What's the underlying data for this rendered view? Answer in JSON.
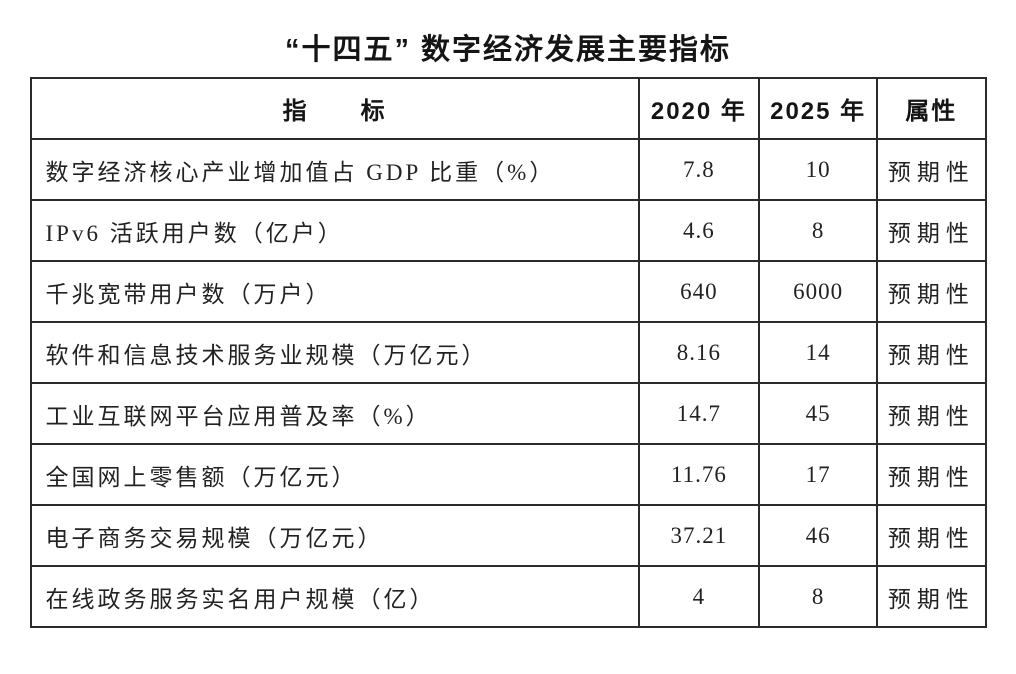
{
  "title": "“十四五” 数字经济发展主要指标",
  "table": {
    "headers": [
      "指　　标",
      "2020 年",
      "2025 年",
      "属性"
    ],
    "rows": [
      {
        "indicator": "数字经济核心产业增加值占 GDP 比重（%）",
        "y2020": "7.8",
        "y2025": "10",
        "attr": "预期性"
      },
      {
        "indicator": "IPv6 活跃用户数（亿户）",
        "y2020": "4.6",
        "y2025": "8",
        "attr": "预期性"
      },
      {
        "indicator": "千兆宽带用户数（万户）",
        "y2020": "640",
        "y2025": "6000",
        "attr": "预期性"
      },
      {
        "indicator": "软件和信息技术服务业规模（万亿元）",
        "y2020": "8.16",
        "y2025": "14",
        "attr": "预期性"
      },
      {
        "indicator": "工业互联网平台应用普及率（%）",
        "y2020": "14.7",
        "y2025": "45",
        "attr": "预期性"
      },
      {
        "indicator": "全国网上零售额（万亿元）",
        "y2020": "11.76",
        "y2025": "17",
        "attr": "预期性"
      },
      {
        "indicator": "电子商务交易规模（万亿元）",
        "y2020": "37.21",
        "y2025": "46",
        "attr": "预期性"
      },
      {
        "indicator": "在线政务服务实名用户规模（亿）",
        "y2020": "4",
        "y2025": "8",
        "attr": "预期性"
      }
    ]
  },
  "colors": {
    "text": "#1c1c1c",
    "border": "#2b2b2b",
    "background": "#ffffff"
  }
}
